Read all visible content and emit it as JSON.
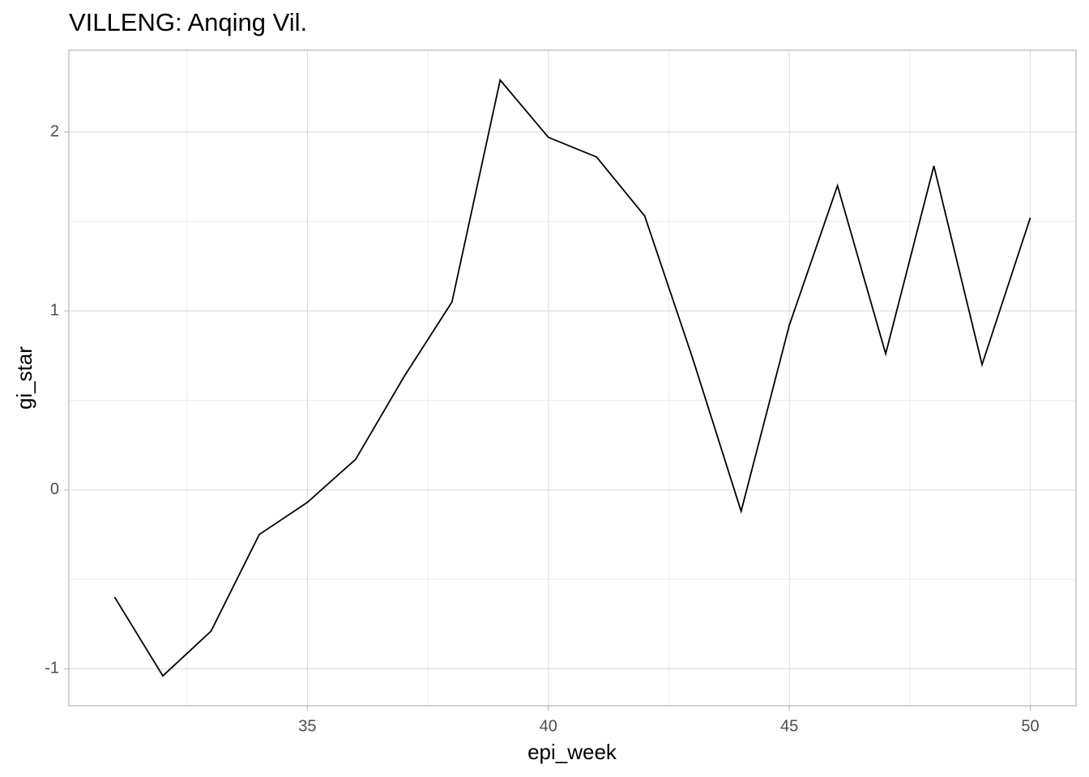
{
  "chart_data": {
    "type": "line",
    "title": "VILLENG: Anqing Vil.",
    "x_label": "epi_week",
    "y_label": "gi_star",
    "x": [
      31,
      32,
      33,
      34,
      35,
      36,
      37,
      38,
      39,
      40,
      41,
      42,
      43,
      44,
      45,
      46,
      47,
      48,
      49,
      50
    ],
    "series": [
      {
        "name": "gi_star",
        "color": "#000000",
        "values": [
          -0.6,
          -1.04,
          -0.79,
          -0.25,
          -0.07,
          0.17,
          0.63,
          1.05,
          2.29,
          1.97,
          1.86,
          1.53,
          0.73,
          -0.12,
          0.92,
          1.7,
          0.76,
          1.81,
          0.7,
          1.52
        ]
      }
    ],
    "xlim": [
      30.05,
      50.95
    ],
    "xticks": [
      35,
      40,
      45,
      50
    ],
    "x_minor_grid": [
      32.5,
      37.5,
      42.5,
      47.5
    ],
    "ylim": [
      -1.207,
      2.457
    ],
    "yticks": [
      -1,
      0,
      1,
      2
    ],
    "y_minor_grid": [
      -0.5,
      0.5,
      1.5
    ],
    "grid": true
  }
}
